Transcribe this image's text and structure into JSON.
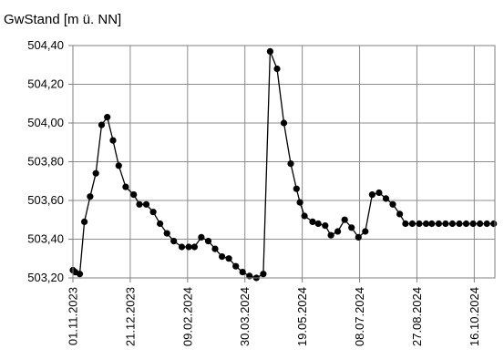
{
  "chart_data": {
    "type": "line",
    "title": "",
    "ylabel": "GwStand [m ü. NN]",
    "xlabel": "",
    "ylim": [
      503.2,
      504.4
    ],
    "yticks": [
      503.2,
      503.4,
      503.6,
      503.8,
      504.0,
      504.2,
      504.4
    ],
    "ytick_labels": [
      "503,20",
      "503,40",
      "503,60",
      "503,80",
      "504,00",
      "504,20",
      "504,40"
    ],
    "xlim": [
      "2023-11-01",
      "2024-11-03"
    ],
    "xtick_labels": [
      "01.11.2023",
      "21.12.2023",
      "09.02.2024",
      "30.03.2024",
      "19.05.2024",
      "08.07.2024",
      "27.08.2024",
      "16.10.2024"
    ],
    "xtick_dates": [
      "2023-11-01",
      "2023-12-21",
      "2024-02-09",
      "2024-03-30",
      "2024-05-19",
      "2024-07-08",
      "2024-08-27",
      "2024-10-16"
    ],
    "grid": "horizontal and vertical",
    "marker": "filled-circle",
    "line_color": "#000000",
    "series": [
      {
        "x": [
          "2023-11-01",
          "2023-11-03",
          "2023-11-07",
          "2023-11-11",
          "2023-11-16",
          "2023-11-21",
          "2023-11-26",
          "2023-12-01",
          "2023-12-06",
          "2023-12-11",
          "2023-12-17",
          "2023-12-24",
          "2023-12-29",
          "2024-01-04",
          "2024-01-10",
          "2024-01-16",
          "2024-01-22",
          "2024-01-28",
          "2024-02-04",
          "2024-02-10",
          "2024-02-15",
          "2024-02-21",
          "2024-02-27",
          "2024-03-04",
          "2024-03-10",
          "2024-03-16",
          "2024-03-22",
          "2024-03-28",
          "2024-04-03",
          "2024-04-09",
          "2024-04-15",
          "2024-04-21",
          "2024-04-27",
          "2024-05-03",
          "2024-05-09",
          "2024-05-14",
          "2024-05-17",
          "2024-05-21",
          "2024-05-28",
          "2024-06-02",
          "2024-06-08",
          "2024-06-13",
          "2024-06-19",
          "2024-06-25",
          "2024-07-01",
          "2024-07-07",
          "2024-07-13",
          "2024-07-19",
          "2024-07-25",
          "2024-07-31",
          "2024-08-06",
          "2024-08-12",
          "2024-08-17",
          "2024-08-23",
          "2024-08-29",
          "2024-09-04",
          "2024-09-09",
          "2024-09-15",
          "2024-09-21",
          "2024-09-27",
          "2024-10-03",
          "2024-10-09",
          "2024-10-15",
          "2024-10-21",
          "2024-10-27",
          "2024-11-02"
        ],
        "y": [
          503.24,
          503.23,
          503.22,
          503.49,
          503.62,
          503.74,
          503.99,
          504.03,
          503.91,
          503.78,
          503.67,
          503.63,
          503.58,
          503.58,
          503.54,
          503.48,
          503.43,
          503.39,
          503.36,
          503.36,
          503.36,
          503.41,
          503.39,
          503.35,
          503.31,
          503.3,
          503.26,
          503.23,
          503.21,
          503.2,
          503.22,
          504.37,
          504.28,
          504.0,
          503.79,
          503.66,
          503.59,
          503.52,
          503.49,
          503.48,
          503.47,
          503.42,
          503.44,
          503.5,
          503.46,
          503.41,
          503.44,
          503.63,
          503.64,
          503.61,
          503.58,
          503.53,
          503.48,
          503.48,
          503.48,
          503.48,
          503.48,
          503.48,
          503.48,
          503.48,
          503.48,
          503.48,
          503.48,
          503.48,
          503.48,
          503.48
        ]
      }
    ]
  }
}
